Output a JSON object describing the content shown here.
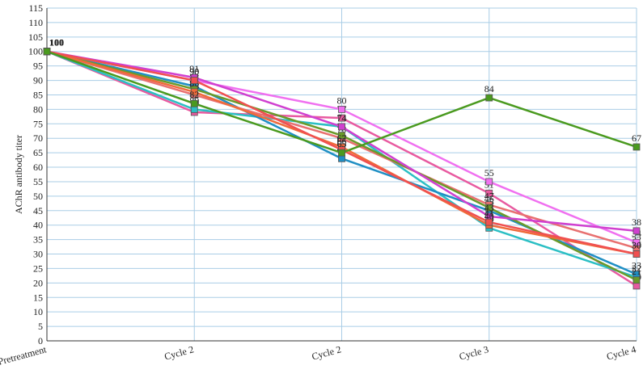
{
  "chart_data": {
    "type": "line",
    "ylabel": "AChR antibody titer",
    "categories": [
      "Pretreatment",
      "Cycle 2",
      "Cycle 2",
      "Cycle 3",
      "Cycle 4"
    ],
    "ylim": [
      0,
      115
    ],
    "yticks": [
      0,
      5,
      10,
      15,
      20,
      25,
      30,
      35,
      40,
      45,
      50,
      55,
      60,
      65,
      70,
      75,
      80,
      85,
      90,
      95,
      100,
      105,
      110,
      115
    ],
    "grid": true,
    "series": [
      {
        "color": "#e85aa0",
        "values": [
          100,
          79,
          77,
          51,
          19
        ]
      },
      {
        "color": "#2bbfc4",
        "values": [
          100,
          80,
          74,
          39,
          22
        ]
      },
      {
        "color": "#1f8fc4",
        "values": [
          100,
          88,
          63,
          45,
          23
        ]
      },
      {
        "color": "#e87070",
        "values": [
          100,
          85,
          70,
          47,
          32
        ]
      },
      {
        "color": "#6a9a2a",
        "values": [
          100,
          87,
          71,
          46,
          21
        ]
      },
      {
        "color": "#f070f0",
        "values": [
          100,
          90,
          80,
          55,
          34
        ]
      },
      {
        "color": "#d040d0",
        "values": [
          100,
          91,
          74,
          43,
          38
        ]
      },
      {
        "color": "#ef6a3a",
        "values": [
          100,
          86,
          67,
          40,
          30
        ]
      },
      {
        "color": "#f05050",
        "values": [
          100,
          90,
          66,
          41,
          30
        ]
      },
      {
        "color": "#4a9a1f",
        "values": [
          100,
          82,
          65,
          84,
          67
        ]
      }
    ]
  }
}
